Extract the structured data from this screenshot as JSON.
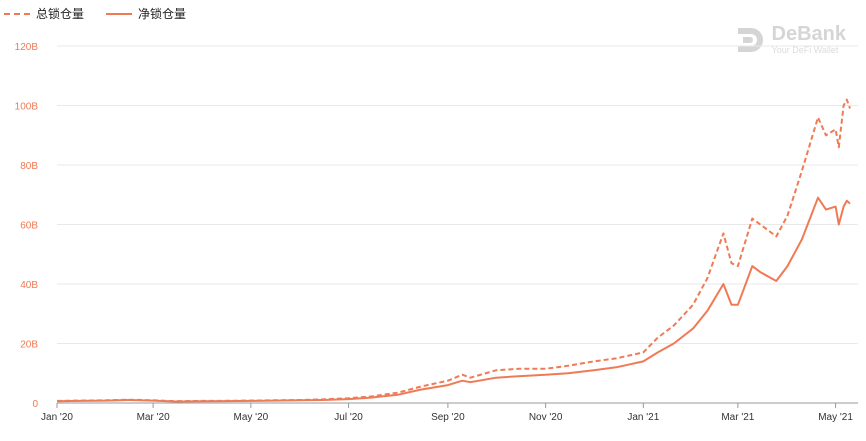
{
  "legend": {
    "total_label": "总锁仓量",
    "net_label": "净锁仓量"
  },
  "watermark": {
    "name": "DeBank",
    "tagline": "Your DeFi Wallet",
    "logo_icon": "debank-logo-icon"
  },
  "colors": {
    "series": "#f07a55",
    "grid": "#e9e9e9",
    "tick": "#f07a55",
    "axis": "#999999"
  },
  "chart_data": {
    "type": "line",
    "y_tick_labels": [
      "0",
      "20B",
      "40B",
      "60B",
      "80B",
      "100B",
      "120B"
    ],
    "y_tick_values": [
      0,
      20,
      40,
      60,
      80,
      100,
      120
    ],
    "ylim": [
      0,
      120
    ],
    "y_unit": "B",
    "x_tick_labels": [
      "Jan '20",
      "Mar '20",
      "May '20",
      "Jul '20",
      "Sep '20",
      "Nov '20",
      "Jan '21",
      "Mar '21",
      "May '21"
    ],
    "x_tick_dates": [
      "2020-01-01",
      "2020-03-01",
      "2020-05-01",
      "2020-07-01",
      "2020-09-01",
      "2020-11-01",
      "2021-01-01",
      "2021-03-01",
      "2021-05-01"
    ],
    "xlim": [
      "2020-01-01",
      "2021-05-10"
    ],
    "grid": true,
    "legend_position": "top-left",
    "series": [
      {
        "name": "总锁仓量",
        "style": "dashed",
        "points": [
          [
            "2020-01-01",
            0.7
          ],
          [
            "2020-01-15",
            0.8
          ],
          [
            "2020-02-01",
            0.9
          ],
          [
            "2020-02-15",
            1.1
          ],
          [
            "2020-03-01",
            0.9
          ],
          [
            "2020-03-15",
            0.6
          ],
          [
            "2020-04-01",
            0.7
          ],
          [
            "2020-04-15",
            0.75
          ],
          [
            "2020-05-01",
            0.8
          ],
          [
            "2020-05-15",
            0.9
          ],
          [
            "2020-06-01",
            1.0
          ],
          [
            "2020-06-15",
            1.2
          ],
          [
            "2020-07-01",
            1.6
          ],
          [
            "2020-07-15",
            2.2
          ],
          [
            "2020-08-01",
            3.5
          ],
          [
            "2020-08-15",
            5.5
          ],
          [
            "2020-09-01",
            7.5
          ],
          [
            "2020-09-10",
            9.5
          ],
          [
            "2020-09-15",
            8.5
          ],
          [
            "2020-10-01",
            11.0
          ],
          [
            "2020-10-15",
            11.5
          ],
          [
            "2020-11-01",
            11.5
          ],
          [
            "2020-11-15",
            12.5
          ],
          [
            "2020-12-01",
            14.0
          ],
          [
            "2020-12-15",
            15.0
          ],
          [
            "2021-01-01",
            17.0
          ],
          [
            "2021-01-10",
            22.0
          ],
          [
            "2021-01-20",
            26.0
          ],
          [
            "2021-02-01",
            33.0
          ],
          [
            "2021-02-10",
            42.0
          ],
          [
            "2021-02-20",
            57.0
          ],
          [
            "2021-02-25",
            47.0
          ],
          [
            "2021-03-01",
            46.0
          ],
          [
            "2021-03-10",
            62.0
          ],
          [
            "2021-03-15",
            60.0
          ],
          [
            "2021-03-25",
            56.0
          ],
          [
            "2021-04-01",
            63.0
          ],
          [
            "2021-04-10",
            78.0
          ],
          [
            "2021-04-20",
            96.0
          ],
          [
            "2021-04-25",
            90.0
          ],
          [
            "2021-05-01",
            92.0
          ],
          [
            "2021-05-03",
            86.0
          ],
          [
            "2021-05-06",
            100.0
          ],
          [
            "2021-05-08",
            102.0
          ],
          [
            "2021-05-10",
            99.0
          ]
        ]
      },
      {
        "name": "净锁仓量",
        "style": "solid",
        "points": [
          [
            "2020-01-01",
            0.6
          ],
          [
            "2020-01-15",
            0.7
          ],
          [
            "2020-02-01",
            0.8
          ],
          [
            "2020-02-15",
            1.0
          ],
          [
            "2020-03-01",
            0.8
          ],
          [
            "2020-03-15",
            0.5
          ],
          [
            "2020-04-01",
            0.6
          ],
          [
            "2020-04-15",
            0.65
          ],
          [
            "2020-05-01",
            0.7
          ],
          [
            "2020-05-15",
            0.8
          ],
          [
            "2020-06-01",
            0.9
          ],
          [
            "2020-06-15",
            1.0
          ],
          [
            "2020-07-01",
            1.3
          ],
          [
            "2020-07-15",
            1.8
          ],
          [
            "2020-08-01",
            2.8
          ],
          [
            "2020-08-15",
            4.5
          ],
          [
            "2020-09-01",
            6.0
          ],
          [
            "2020-09-10",
            7.5
          ],
          [
            "2020-09-15",
            7.0
          ],
          [
            "2020-10-01",
            8.5
          ],
          [
            "2020-10-15",
            9.0
          ],
          [
            "2020-11-01",
            9.5
          ],
          [
            "2020-11-15",
            10.0
          ],
          [
            "2020-12-01",
            11.0
          ],
          [
            "2020-12-15",
            12.0
          ],
          [
            "2021-01-01",
            14.0
          ],
          [
            "2021-01-10",
            17.0
          ],
          [
            "2021-01-20",
            20.0
          ],
          [
            "2021-02-01",
            25.0
          ],
          [
            "2021-02-10",
            31.0
          ],
          [
            "2021-02-20",
            40.0
          ],
          [
            "2021-02-25",
            33.0
          ],
          [
            "2021-03-01",
            33.0
          ],
          [
            "2021-03-10",
            46.0
          ],
          [
            "2021-03-15",
            44.0
          ],
          [
            "2021-03-25",
            41.0
          ],
          [
            "2021-04-01",
            46.0
          ],
          [
            "2021-04-10",
            55.0
          ],
          [
            "2021-04-20",
            69.0
          ],
          [
            "2021-04-25",
            65.0
          ],
          [
            "2021-05-01",
            66.0
          ],
          [
            "2021-05-03",
            60.0
          ],
          [
            "2021-05-06",
            66.0
          ],
          [
            "2021-05-08",
            68.0
          ],
          [
            "2021-05-10",
            67.0
          ]
        ]
      }
    ]
  }
}
